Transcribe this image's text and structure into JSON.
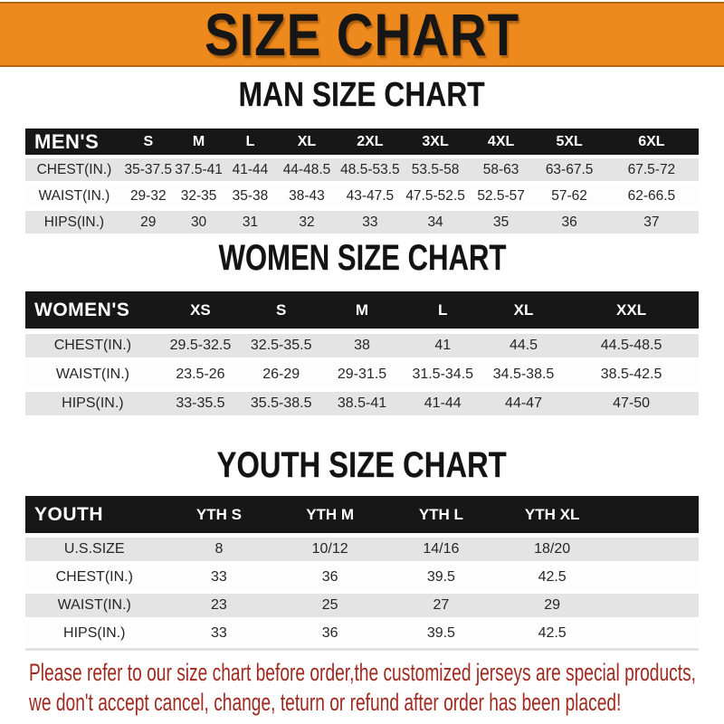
{
  "banner": {
    "title": "SIZE CHART"
  },
  "colors": {
    "banner_orange": "#ee8a1d",
    "band_black": "#171717",
    "row_gray": "#e4e4e4",
    "footer_red": "#9f2a20"
  },
  "chart_data": [
    {
      "type": "table",
      "title": "MAN SIZE CHART",
      "corner_label": "MEN'S",
      "columns": [
        "S",
        "M",
        "L",
        "XL",
        "2XL",
        "3XL",
        "4XL",
        "5XL",
        "6XL"
      ],
      "rows": [
        {
          "label": "CHEST(IN.)",
          "values": [
            "35-37.5",
            "37.5-41",
            "41-44",
            "44-48.5",
            "48.5-53.5",
            "53.5-58",
            "58-63",
            "63-67.5",
            "67.5-72"
          ]
        },
        {
          "label": "WAIST(IN.)",
          "values": [
            "29-32",
            "32-35",
            "35-38",
            "38-43",
            "43-47.5",
            "47.5-52.5",
            "52.5-57",
            "57-62",
            "62-66.5"
          ]
        },
        {
          "label": "HIPS(IN.)",
          "values": [
            "29",
            "30",
            "31",
            "32",
            "33",
            "34",
            "35",
            "36",
            "37"
          ]
        }
      ]
    },
    {
      "type": "table",
      "title": "WOMEN SIZE CHART",
      "corner_label": "WOMEN'S",
      "columns": [
        "XS",
        "S",
        "M",
        "L",
        "XL",
        "XXL"
      ],
      "rows": [
        {
          "label": "CHEST(IN.)",
          "values": [
            "29.5-32.5",
            "32.5-35.5",
            "38",
            "41",
            "44.5",
            "44.5-48.5"
          ]
        },
        {
          "label": "WAIST(IN.)",
          "values": [
            "23.5-26",
            "26-29",
            "29-31.5",
            "31.5-34.5",
            "34.5-38.5",
            "38.5-42.5"
          ]
        },
        {
          "label": "HIPS(IN.)",
          "values": [
            "33-35.5",
            "35.5-38.5",
            "38.5-41",
            "41-44",
            "44-47",
            "47-50"
          ]
        }
      ]
    },
    {
      "type": "table",
      "title": "YOUTH SIZE CHART",
      "corner_label": "YOUTH",
      "columns": [
        "YTH S",
        "YTH M",
        "YTH L",
        "YTH XL"
      ],
      "rows": [
        {
          "label": "U.S.SIZE",
          "values": [
            "8",
            "10/12",
            "14/16",
            "18/20"
          ]
        },
        {
          "label": "CHEST(IN.)",
          "values": [
            "33",
            "36",
            "39.5",
            "42.5"
          ]
        },
        {
          "label": "WAIST(IN.)",
          "values": [
            "23",
            "25",
            "27",
            "29"
          ]
        },
        {
          "label": "HIPS(IN.)",
          "values": [
            "33",
            "36",
            "39.5",
            "42.5"
          ]
        }
      ]
    }
  ],
  "footer": {
    "line1": "Please refer to our size chart before order,the customized jerseys are special products,",
    "line2": "we don't accept cancel, change, teturn or refund after order has been placed!"
  }
}
